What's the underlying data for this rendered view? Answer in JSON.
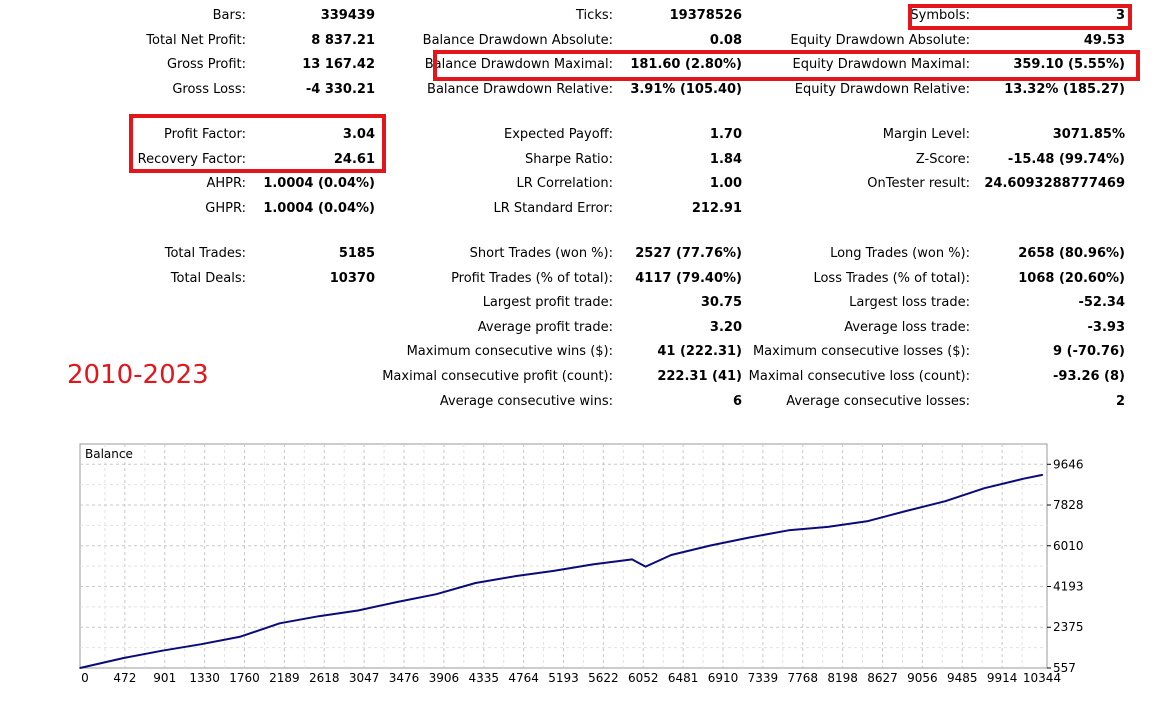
{
  "stats": {
    "col1": [
      {
        "label": "Bars:",
        "value": "339439"
      },
      {
        "label": "Total Net Profit:",
        "value": "8 837.21"
      },
      {
        "label": "Gross Profit:",
        "value": "13 167.42"
      },
      {
        "label": "Gross Loss:",
        "value": "-4 330.21"
      },
      {
        "label": "Profit Factor:",
        "value": "3.04"
      },
      {
        "label": "Recovery Factor:",
        "value": "24.61"
      },
      {
        "label": "AHPR:",
        "value": "1.0004 (0.04%)"
      },
      {
        "label": "GHPR:",
        "value": "1.0004 (0.04%)"
      },
      {
        "label": "Total Trades:",
        "value": "5185"
      },
      {
        "label": "Total Deals:",
        "value": "10370"
      }
    ],
    "col2": [
      {
        "label": "Ticks:",
        "value": "19378526"
      },
      {
        "label": "Balance Drawdown Absolute:",
        "value": "0.08"
      },
      {
        "label": "Balance Drawdown Maximal:",
        "value": "181.60 (2.80%)"
      },
      {
        "label": "Balance Drawdown Relative:",
        "value": "3.91% (105.40)"
      },
      {
        "label": "Expected Payoff:",
        "value": "1.70"
      },
      {
        "label": "Sharpe Ratio:",
        "value": "1.84"
      },
      {
        "label": "LR Correlation:",
        "value": "1.00"
      },
      {
        "label": "LR Standard Error:",
        "value": "212.91"
      },
      {
        "label": "Short Trades (won %):",
        "value": "2527 (77.76%)"
      },
      {
        "label": "Profit Trades (% of total):",
        "value": "4117 (79.40%)"
      },
      {
        "label": "Largest profit trade:",
        "value": "30.75"
      },
      {
        "label": "Average profit trade:",
        "value": "3.20"
      },
      {
        "label": "Maximum consecutive wins ($):",
        "value": "41 (222.31)"
      },
      {
        "label": "Maximal consecutive profit (count):",
        "value": "222.31 (41)"
      },
      {
        "label": "Average consecutive wins:",
        "value": "6"
      }
    ],
    "col3": [
      {
        "label": "Symbols:",
        "value": "3"
      },
      {
        "label": "Equity Drawdown Absolute:",
        "value": "49.53"
      },
      {
        "label": "Equity Drawdown Maximal:",
        "value": "359.10 (5.55%)"
      },
      {
        "label": "Equity Drawdown Relative:",
        "value": "13.32% (185.27)"
      },
      {
        "label": "Margin Level:",
        "value": "3071.85%"
      },
      {
        "label": "Z-Score:",
        "value": "-15.48 (99.74%)"
      },
      {
        "label": "OnTester result:",
        "value": "24.6093288777469"
      },
      {
        "label": "Long Trades (won %):",
        "value": "2658 (80.96%)"
      },
      {
        "label": "Loss Trades (% of total):",
        "value": "1068 (20.60%)"
      },
      {
        "label": "Largest loss trade:",
        "value": "-52.34"
      },
      {
        "label": "Average loss trade:",
        "value": "-3.93"
      },
      {
        "label": "Maximum consecutive losses ($):",
        "value": "9 (-70.76)"
      },
      {
        "label": "Maximal consecutive loss (count):",
        "value": "-93.26 (8)"
      },
      {
        "label": "Average consecutive losses:",
        "value": "2"
      }
    ]
  },
  "period_label": "2010-2023",
  "colors": {
    "highlight": "#e3161c",
    "balance_line": "#0a0a7a",
    "grid": "#c8c8c8"
  },
  "chart_data": {
    "type": "line",
    "title": "Balance",
    "x_ticks": [
      "0",
      "472",
      "901",
      "1330",
      "1760",
      "2189",
      "2618",
      "3047",
      "3476",
      "3906",
      "4335",
      "4764",
      "5193",
      "5622",
      "6052",
      "6481",
      "6910",
      "7339",
      "7768",
      "8198",
      "8627",
      "9056",
      "9485",
      "9914",
      "10344"
    ],
    "y_ticks": [
      "557",
      "2375",
      "4193",
      "6010",
      "7828",
      "9646"
    ],
    "x_range": [
      0,
      10600
    ],
    "y_range": [
      557,
      10550
    ],
    "series": [
      {
        "x": [
          0,
          472,
          901,
          1330,
          1760,
          2189,
          2618,
          3047,
          3476,
          3906,
          4335,
          4764,
          5193,
          5622,
          6052,
          6200,
          6481,
          6910,
          7339,
          7768,
          8198,
          8627,
          9056,
          9485,
          9914,
          10344,
          10550
        ],
        "y": [
          557,
          1000,
          1330,
          1620,
          1960,
          2550,
          2870,
          3120,
          3500,
          3850,
          4350,
          4650,
          4890,
          5180,
          5400,
          5080,
          5600,
          6020,
          6380,
          6700,
          6850,
          7100,
          7560,
          8000,
          8580,
          9000,
          9170
        ]
      }
    ]
  }
}
